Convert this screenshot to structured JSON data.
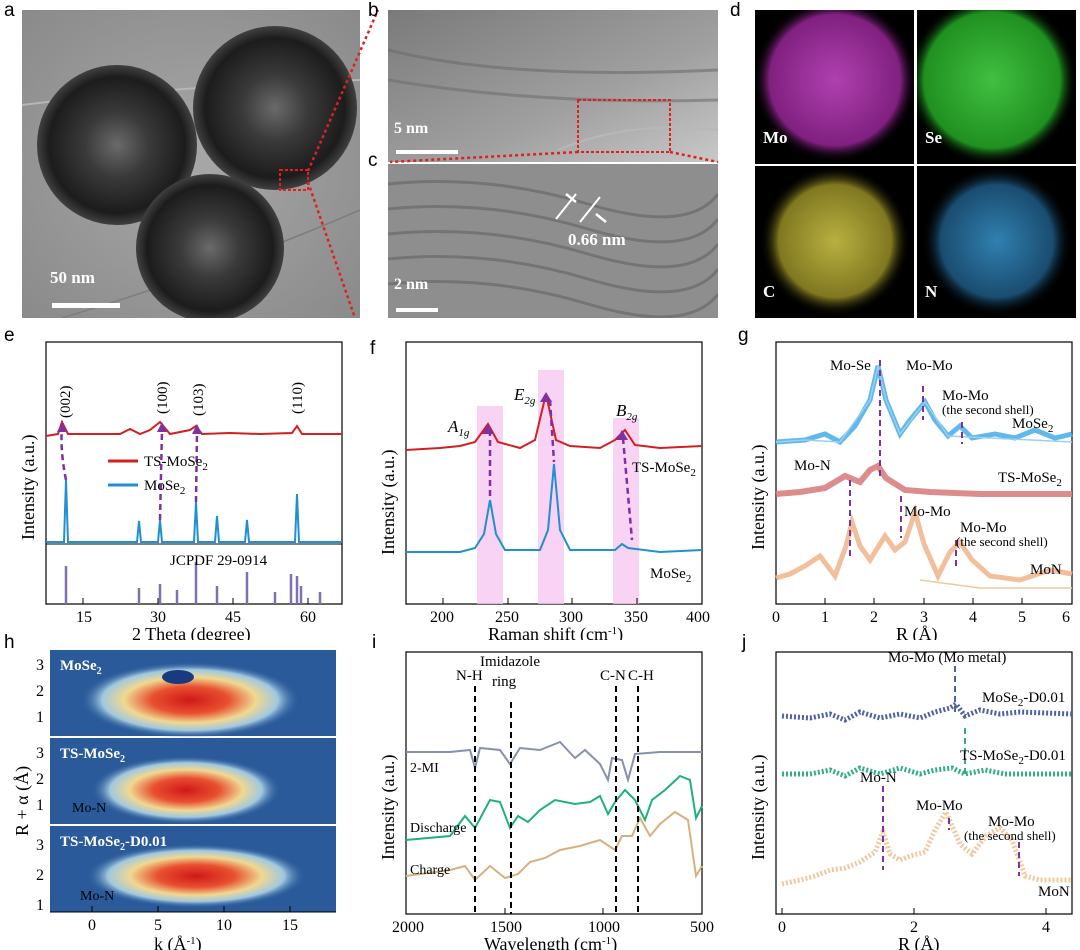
{
  "panels": {
    "a": {
      "label": "a",
      "scale": "50 nm"
    },
    "b": {
      "label": "b",
      "scale": "5 nm"
    },
    "c": {
      "label": "c",
      "scale": "2 nm",
      "spacing": "0.66 nm"
    },
    "d": {
      "label": "d",
      "elements": [
        "Mo",
        "Se",
        "C",
        "N"
      ],
      "colors": [
        "#c040c0",
        "#30c030",
        "#d8d050",
        "#3090c0"
      ]
    },
    "e": {
      "label": "e",
      "xlabel": "2 Theta (degree)",
      "ylabel": "Intensity (a.u.)",
      "xticks": [
        "15",
        "30",
        "45",
        "60"
      ],
      "peaks": [
        "(002)",
        "(100)",
        "(103)",
        "(110)"
      ],
      "legend": [
        "TS-MoSe",
        "MoSe"
      ],
      "legend_sub": "2",
      "ref": "JCPDF 29-0914"
    },
    "f": {
      "label": "f",
      "xlabel": "Raman shift (cm",
      "xlabel_sup": "-1",
      "xlabel_end": ")",
      "ylabel": "Intensity (a.u.)",
      "xticks": [
        "200",
        "250",
        "300",
        "350",
        "400"
      ],
      "modes": [
        "A",
        "E",
        "B"
      ],
      "series": [
        "TS-MoSe",
        "MoSe"
      ],
      "sub": "2"
    },
    "g": {
      "label": "g",
      "xlabel": "R (Å)",
      "ylabel": "Intensity (a.u.)",
      "xticks": [
        "0",
        "1",
        "2",
        "3",
        "4",
        "5",
        "6"
      ],
      "ann": [
        "Mo-Se",
        "Mo-Mo",
        "Mo-Mo",
        "(the second shell)",
        "Mo-N",
        "Mo-Mo",
        "Mo-Mo",
        "(the second shell)"
      ],
      "series": [
        "MoSe",
        "TS-MoSe",
        "MoN"
      ],
      "sub": "2"
    },
    "h": {
      "label": "h",
      "xlabel": "k (Å",
      "xlabel_sup": "-1",
      "xlabel_end": ")",
      "ylabel": "R + α (Å)",
      "xticks": [
        "0",
        "5",
        "10",
        "15"
      ],
      "yticks": [
        "1",
        "2",
        "3"
      ],
      "maps": [
        "MoSe",
        "TS-MoSe",
        "TS-MoSe",
        "-D0.01"
      ],
      "mon": "Mo-N",
      "sub": "2"
    },
    "i": {
      "label": "i",
      "xlabel": "Wavelength (cm",
      "xlabel_sup": "-1",
      "xlabel_end": ")",
      "ylabel": "Intensity (a.u.)",
      "xticks": [
        "2000",
        "1500",
        "1000",
        "500"
      ],
      "bands": [
        "N-H",
        "Imidazole",
        "ring",
        "C-N",
        "C-H"
      ],
      "series": [
        "2-MI",
        "Discharge",
        "Charge"
      ]
    },
    "j": {
      "label": "j",
      "xlabel": "R (Å)",
      "ylabel": "Intensity (a.u.)",
      "xticks": [
        "0",
        "2",
        "4"
      ],
      "ann": [
        "Mo-Mo (Mo metal)",
        "Mo-N",
        "Mo-Mo",
        "Mo-Mo",
        "(the second shell)"
      ],
      "series": [
        "MoSe",
        "-D0.01",
        "TS-MoSe",
        "-D0.01",
        "MoN"
      ],
      "sub": "2"
    }
  }
}
